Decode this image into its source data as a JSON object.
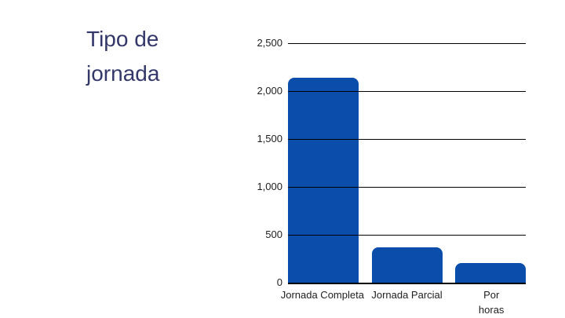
{
  "slide": {
    "background": "#ffffff"
  },
  "title": {
    "text": "Tipo de jornada",
    "color": "#333769"
  },
  "chart_data": {
    "type": "bar",
    "title": "Tipo de jornada",
    "categories": [
      "Jornada Completa",
      "Jornada Parcial",
      "Por horas"
    ],
    "values": [
      2140,
      365,
      205
    ],
    "x_tick_display": [
      "Jornada Completa",
      "Jornada Parcial",
      "Por\nhoras"
    ],
    "xlabel": "",
    "ylabel": "",
    "ylim": [
      0,
      2500
    ],
    "yticks": [
      0,
      500,
      1000,
      1500,
      2000,
      2500
    ],
    "ytick_labels": [
      "0",
      "500",
      "1,000",
      "1,500",
      "2,000",
      "2,500"
    ],
    "grid": true,
    "legend": false,
    "bar_color": "#0a4dab",
    "grid_color": "#000000",
    "tick_label_color": "#212121"
  }
}
